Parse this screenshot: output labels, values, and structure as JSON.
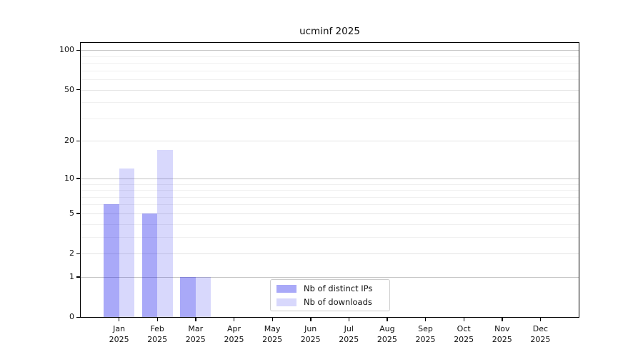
{
  "chart_data": {
    "type": "bar",
    "title": "ucminf 2025",
    "categories": [
      "Jan",
      "Feb",
      "Mar",
      "Apr",
      "May",
      "Jun",
      "Jul",
      "Aug",
      "Sep",
      "Oct",
      "Nov",
      "Dec"
    ],
    "year_label": "2025",
    "series": [
      {
        "name": "Nb of distinct IPs",
        "color": "rgba(10,10,235,0.35)",
        "values": [
          6,
          5,
          1,
          0,
          0,
          0,
          0,
          0,
          0,
          0,
          0,
          0
        ]
      },
      {
        "name": "Nb of downloads",
        "color": "rgba(10,10,235,0.16)",
        "values": [
          12,
          17,
          1,
          0,
          0,
          0,
          0,
          0,
          0,
          0,
          0,
          0
        ]
      }
    ],
    "xlabel": "",
    "ylabel": "",
    "y_scale": "log1p",
    "ylim": [
      0,
      113
    ],
    "y_ticks": [
      0,
      1,
      2,
      5,
      10,
      20,
      50,
      100
    ],
    "y_minor_gridlines": [
      3,
      4,
      6,
      7,
      8,
      9,
      30,
      40,
      60,
      70,
      80,
      90
    ],
    "y_major_gridlines": [
      1,
      10,
      100
    ],
    "grid": true,
    "legend_position": "lower center",
    "colors": {
      "major_grid": "#c6c6c6",
      "labeled_grid": "#e4e4e4",
      "minor_grid": "#f0f0f0",
      "axis": "#000000",
      "text": "#111111",
      "legend_border": "#cccccc"
    }
  }
}
